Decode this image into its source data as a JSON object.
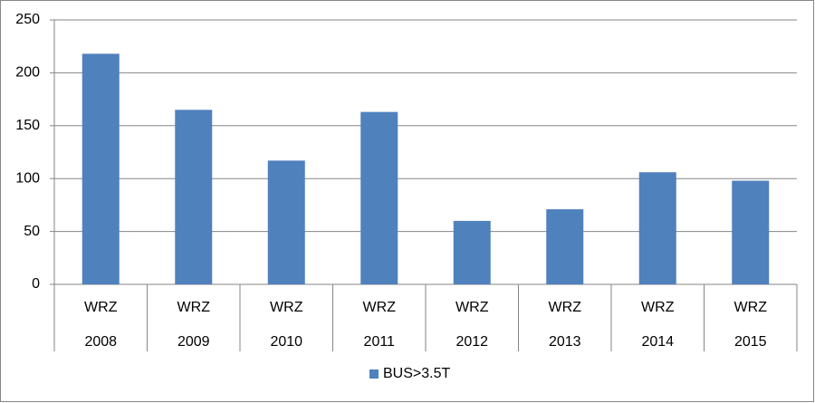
{
  "chart_data": {
    "type": "bar",
    "categories": [
      "2008",
      "2009",
      "2010",
      "2011",
      "2012",
      "2013",
      "2014",
      "2015"
    ],
    "category_groups": [
      "WRZ",
      "WRZ",
      "WRZ",
      "WRZ",
      "WRZ",
      "WRZ",
      "WRZ",
      "WRZ"
    ],
    "series": [
      {
        "name": "BUS>3.5T",
        "color": "#4f81bd",
        "values": [
          218,
          165,
          117,
          163,
          60,
          71,
          106,
          98
        ]
      }
    ],
    "ylim": [
      0,
      250
    ],
    "yticks": [
      0,
      50,
      100,
      150,
      200,
      250
    ],
    "grid": true,
    "legend": "bottom"
  }
}
